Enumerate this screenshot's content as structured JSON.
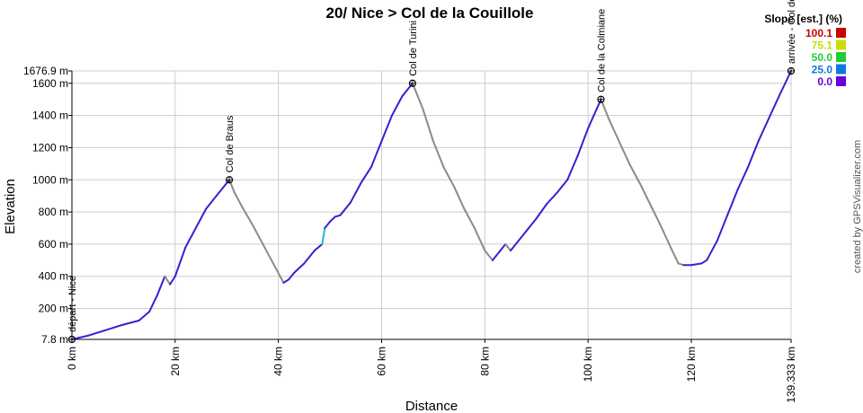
{
  "chart_data": {
    "type": "line",
    "title": "20/ Nice > Col de la Couillole",
    "xlabel": "Distance",
    "ylabel": "Elevation",
    "xlim": [
      0,
      139.333
    ],
    "ylim": [
      7.8,
      1676.9
    ],
    "x_ticks": [
      {
        "value": 0,
        "label": "0 km"
      },
      {
        "value": 20,
        "label": "20 km"
      },
      {
        "value": 40,
        "label": "40 km"
      },
      {
        "value": 60,
        "label": "60 km"
      },
      {
        "value": 80,
        "label": "80 km"
      },
      {
        "value": 100,
        "label": "100 km"
      },
      {
        "value": 120,
        "label": "120 km"
      },
      {
        "value": 139.333,
        "label": "139.333 km"
      }
    ],
    "y_ticks": [
      {
        "value": 7.8,
        "label": "7.8 m"
      },
      {
        "value": 200,
        "label": "200 m"
      },
      {
        "value": 400,
        "label": "400 m"
      },
      {
        "value": 600,
        "label": "600 m"
      },
      {
        "value": 800,
        "label": "800 m"
      },
      {
        "value": 1000,
        "label": "1000 m"
      },
      {
        "value": 1200,
        "label": "1200 m"
      },
      {
        "value": 1400,
        "label": "1400 m"
      },
      {
        "value": 1600,
        "label": "1600 m"
      },
      {
        "value": 1676.9,
        "label": "1676.9 m"
      }
    ],
    "grid": true,
    "series": [
      {
        "x": [
          0,
          3,
          6,
          8,
          10,
          13,
          15,
          16.5,
          18,
          19,
          20,
          22,
          24,
          26,
          28,
          30.5,
          31.5,
          33,
          35,
          37,
          39,
          41,
          42,
          43,
          45,
          47,
          48.5,
          49,
          50,
          51,
          52,
          54,
          55,
          56,
          58,
          60,
          62,
          64,
          66,
          68,
          70,
          72,
          74,
          76,
          78,
          80,
          81.5,
          83,
          84,
          85,
          86,
          88,
          90,
          92,
          94,
          96,
          98,
          100,
          102.5,
          104,
          106,
          108,
          110,
          112,
          114,
          116,
          117.5,
          118.5,
          120,
          122,
          123,
          125,
          127,
          129,
          131,
          133,
          135,
          137,
          139.333
        ],
        "y": [
          7.8,
          30,
          60,
          80,
          100,
          125,
          180,
          280,
          400,
          350,
          400,
          580,
          700,
          820,
          900,
          1000,
          920,
          830,
          720,
          600,
          480,
          360,
          380,
          420,
          480,
          560,
          600,
          700,
          740,
          770,
          780,
          860,
          920,
          980,
          1080,
          1240,
          1400,
          1520,
          1600,
          1440,
          1240,
          1080,
          960,
          820,
          700,
          560,
          500,
          560,
          600,
          560,
          600,
          680,
          760,
          850,
          920,
          1000,
          1150,
          1320,
          1500,
          1380,
          1240,
          1100,
          980,
          850,
          720,
          580,
          480,
          470,
          470,
          480,
          500,
          620,
          780,
          940,
          1080,
          1240,
          1380,
          1520,
          1676.9
        ]
      }
    ],
    "waypoints": [
      {
        "x": 0,
        "y": 7.8,
        "label": "départ - Nice"
      },
      {
        "x": 30.5,
        "y": 1000,
        "label": "Col de Braus"
      },
      {
        "x": 66,
        "y": 1600,
        "label": "Col de Turini"
      },
      {
        "x": 102.5,
        "y": 1500,
        "label": "Col de la Colmiane"
      },
      {
        "x": 139.333,
        "y": 1676.9,
        "label": "arrivée - Col de la Couillole"
      }
    ],
    "legend": {
      "title": "Slope [est.] (%)",
      "placement": "top-right",
      "items": [
        {
          "label": "100.1",
          "color": "#cc0000"
        },
        {
          "label": "75.1",
          "color": "#ccdd00"
        },
        {
          "label": "50.0",
          "color": "#22cc33"
        },
        {
          "label": "25.0",
          "color": "#1177dd"
        },
        {
          "label": "0.0",
          "color": "#6600dd"
        }
      ]
    },
    "line_colors": {
      "ascent": "#3a1fd0",
      "descent": "#8a8a8a",
      "steep": "#22bbcc"
    }
  },
  "credit": "created by GPSVisualizer.com"
}
